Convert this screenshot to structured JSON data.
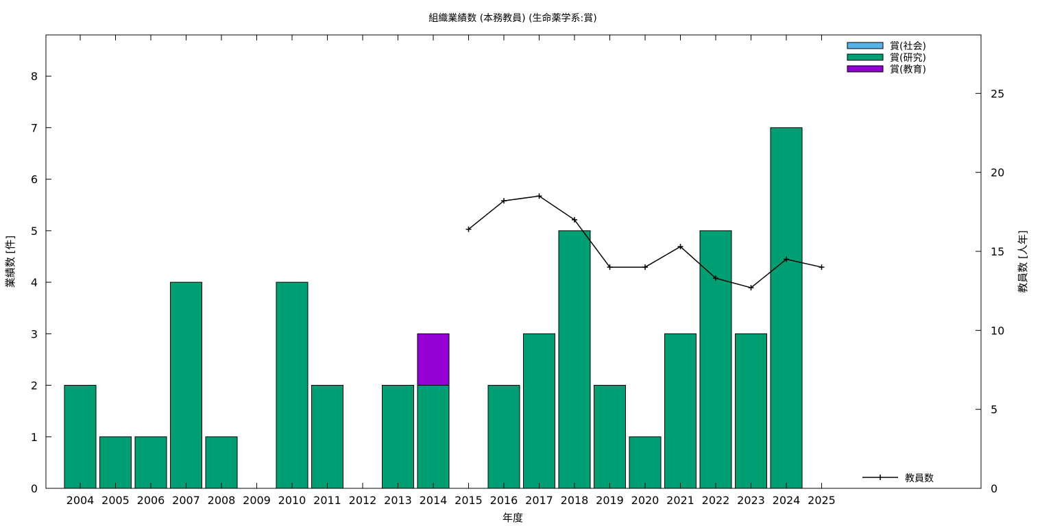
{
  "chart_data": {
    "type": "bar",
    "title": "組織業績数 (本務教員) (生命薬学系:賞)",
    "xlabel": "年度",
    "ylabel": "業績数 [件]",
    "y2label": "教員数 [人年]",
    "ylim": [
      0,
      8.8
    ],
    "y2lim": [
      0,
      28.7
    ],
    "yticks": [
      0,
      1,
      2,
      3,
      4,
      5,
      6,
      7,
      8
    ],
    "y2ticks": [
      0,
      5,
      10,
      15,
      20,
      25
    ],
    "categories": [
      "2004",
      "2005",
      "2006",
      "2007",
      "2008",
      "2009",
      "2010",
      "2011",
      "2012",
      "2013",
      "2014",
      "2015",
      "2016",
      "2017",
      "2018",
      "2019",
      "2020",
      "2021",
      "2022",
      "2023",
      "2024",
      "2025"
    ],
    "stacked": true,
    "series": [
      {
        "name": "賞(社会)",
        "color": "#56b4e9",
        "values": [
          0,
          0,
          0,
          0,
          0,
          0,
          0,
          0,
          0,
          0,
          0,
          0,
          0,
          0,
          0,
          0,
          0,
          0,
          0,
          0,
          0,
          0
        ]
      },
      {
        "name": "賞(研究)",
        "color": "#009e73",
        "values": [
          2,
          1,
          1,
          4,
          1,
          0,
          4,
          2,
          0,
          2,
          2,
          0,
          2,
          3,
          5,
          2,
          1,
          3,
          5,
          3,
          7,
          0
        ]
      },
      {
        "name": "賞(教育)",
        "color": "#9400d3",
        "values": [
          0,
          0,
          0,
          0,
          0,
          0,
          0,
          0,
          0,
          0,
          1,
          0,
          0,
          0,
          0,
          0,
          0,
          0,
          0,
          0,
          0,
          0
        ]
      }
    ],
    "line_series": {
      "name": "教員数",
      "color": "#000000",
      "axis": "right",
      "points": [
        {
          "x": "2015",
          "y": 16.4
        },
        {
          "x": "2016",
          "y": 18.2
        },
        {
          "x": "2017",
          "y": 18.5
        },
        {
          "x": "2018",
          "y": 17.0
        },
        {
          "x": "2019",
          "y": 14.0
        },
        {
          "x": "2020",
          "y": 14.0
        },
        {
          "x": "2021",
          "y": 15.3
        },
        {
          "x": "2022",
          "y": 13.3
        },
        {
          "x": "2023",
          "y": 12.7
        },
        {
          "x": "2024",
          "y": 14.5
        },
        {
          "x": "2025",
          "y": 14.0
        }
      ]
    },
    "legend": {
      "bars_position": "top-right",
      "line_position": "bottom-right"
    },
    "grid": false
  }
}
